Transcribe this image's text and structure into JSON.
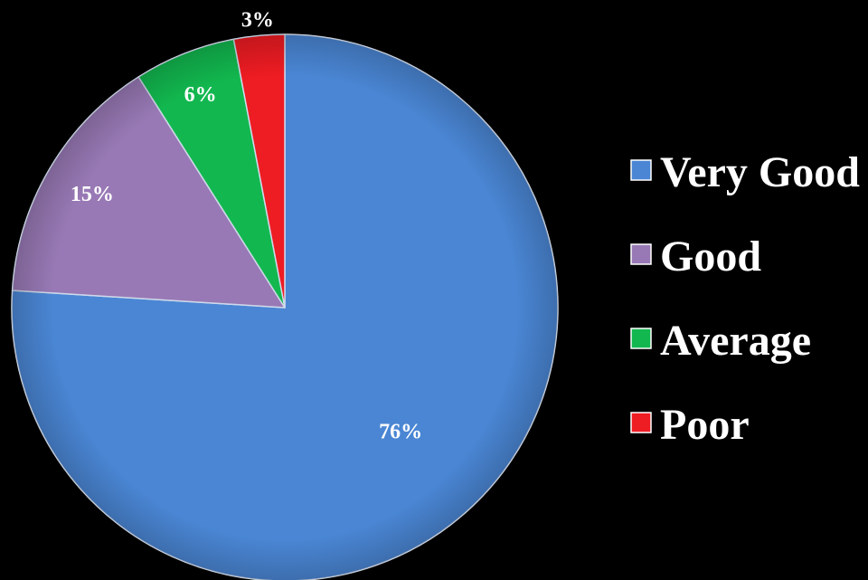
{
  "chart_data": {
    "type": "pie",
    "title": "",
    "categories": [
      "Very Good",
      "Good",
      "Average",
      "Poor"
    ],
    "values": [
      76,
      15,
      6,
      3
    ],
    "data_labels": [
      "76%",
      "15%",
      "6%",
      "3%"
    ],
    "colors": [
      "#4a86d4",
      "#9879b5",
      "#12b84f",
      "#ee1c23"
    ],
    "label_colors": [
      "#ffffff",
      "#ffffff",
      "#ffffff",
      "#ffffff"
    ],
    "start_angle": "12 o'clock",
    "direction": "clockwise",
    "legend": {
      "position": "right",
      "entries": [
        "Very Good",
        "Good",
        "Average",
        "Poor"
      ]
    }
  }
}
